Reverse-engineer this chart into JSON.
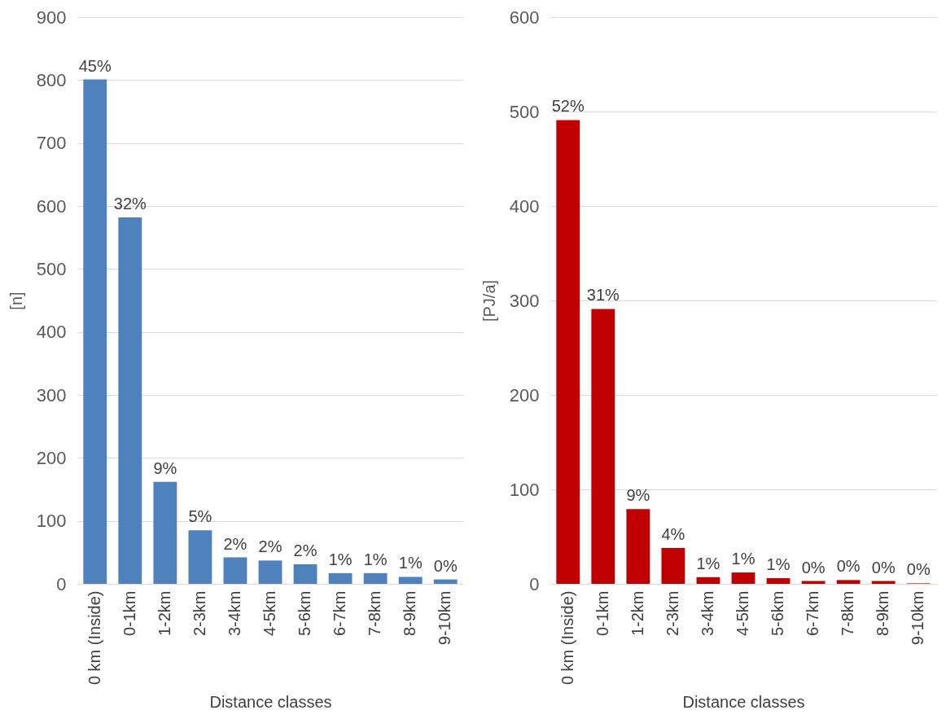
{
  "chart_data": [
    {
      "type": "bar",
      "categories": [
        "0 km (Inside)",
        "0-1km",
        "1-2km",
        "2-3km",
        "3-4km",
        "4-5km",
        "5-6km",
        "6-7km",
        "7-8km",
        "8-9km",
        "9-10km"
      ],
      "values": [
        801,
        582,
        162,
        85,
        42,
        37,
        31,
        17,
        17,
        11,
        7
      ],
      "color": "#4f81bd",
      "xlabel": "Distance classes",
      "ylabel": "[n]",
      "ylim": [
        0,
        900
      ],
      "yticks": [
        0,
        100,
        200,
        300,
        400,
        500,
        600,
        700,
        800,
        900
      ],
      "grid": "y",
      "annotations": [
        {
          "text": "45%",
          "x": "0 km (Inside)",
          "y": 801
        },
        {
          "text": "32%",
          "x": "0-1km",
          "y": 582
        },
        {
          "text": "9%",
          "x": "1-2km",
          "y": 162
        },
        {
          "text": "5%",
          "x": "2-3km",
          "y": 85
        },
        {
          "text": "2%",
          "x": "3-4km",
          "y": 42
        },
        {
          "text": "2%",
          "x": "4-5km",
          "y": 37
        },
        {
          "text": "2%",
          "x": "5-6km",
          "y": 31
        },
        {
          "text": "1%",
          "x": "6-7km",
          "y": 17
        },
        {
          "text": "1%",
          "x": "7-8km",
          "y": 17
        },
        {
          "text": "1%",
          "x": "8-9km",
          "y": 11
        },
        {
          "text": "0%",
          "x": "9-10km",
          "y": 7
        }
      ]
    },
    {
      "type": "bar",
      "categories": [
        "0 km (Inside)",
        "0-1km",
        "1-2km",
        "2-3km",
        "3-4km",
        "4-5km",
        "5-6km",
        "6-7km",
        "7-8km",
        "8-9km",
        "9-10km"
      ],
      "values": [
        491,
        291,
        79,
        38,
        7,
        12,
        6,
        3,
        4,
        3,
        0.5
      ],
      "color": "#c00000",
      "xlabel": "Distance classes",
      "ylabel": "[PJ/a]",
      "ylim": [
        0,
        600
      ],
      "yticks": [
        0,
        100,
        200,
        300,
        400,
        500,
        600
      ],
      "grid": "y",
      "annotations": [
        {
          "text": "52%",
          "x": "0 km (Inside)",
          "y": 491
        },
        {
          "text": "31%",
          "x": "0-1km",
          "y": 291
        },
        {
          "text": "9%",
          "x": "1-2km",
          "y": 79
        },
        {
          "text": "4%",
          "x": "2-3km",
          "y": 38
        },
        {
          "text": "1%",
          "x": "3-4km",
          "y": 7
        },
        {
          "text": "1%",
          "x": "4-5km",
          "y": 12
        },
        {
          "text": "1%",
          "x": "5-6km",
          "y": 6
        },
        {
          "text": "0%",
          "x": "6-7km",
          "y": 3
        },
        {
          "text": "0%",
          "x": "7-8km",
          "y": 4
        },
        {
          "text": "0%",
          "x": "8-9km",
          "y": 3
        },
        {
          "text": "0%",
          "x": "9-10km",
          "y": 0.5
        }
      ]
    }
  ]
}
